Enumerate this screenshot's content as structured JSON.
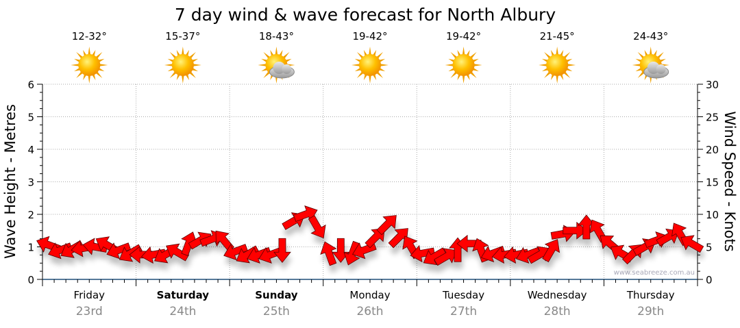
{
  "chart_data": {
    "type": "scatter",
    "title": "7 day wind & wave forecast for North Albury",
    "ylabel": "Wave Height - Metres",
    "y2label": "Wind Speed - Knots",
    "ylim": [
      0,
      6
    ],
    "y2lim": [
      0,
      30
    ],
    "yticks": [
      "0",
      "1",
      "2",
      "3",
      "4",
      "5",
      "6"
    ],
    "y2ticks": [
      "0",
      "5",
      "10",
      "15",
      "20",
      "25",
      "30"
    ],
    "grid": true,
    "watermark": "www.seabreeze.com.au",
    "days": [
      {
        "name": "Friday",
        "date": "23rd",
        "bold": false,
        "temp": "12-32°",
        "icon": "sun"
      },
      {
        "name": "Saturday",
        "date": "24th",
        "bold": true,
        "temp": "15-37°",
        "icon": "sun"
      },
      {
        "name": "Sunday",
        "date": "25th",
        "bold": true,
        "temp": "18-43°",
        "icon": "sun-cloud"
      },
      {
        "name": "Monday",
        "date": "26th",
        "bold": false,
        "temp": "19-42°",
        "icon": "sun"
      },
      {
        "name": "Tuesday",
        "date": "27th",
        "bold": false,
        "temp": "19-42°",
        "icon": "sun"
      },
      {
        "name": "Wednesday",
        "date": "28th",
        "bold": false,
        "temp": "21-45°",
        "icon": "sun"
      },
      {
        "name": "Thursday",
        "date": "29th",
        "bold": false,
        "temp": "24-43°",
        "icon": "sun-cloud"
      }
    ],
    "wind_interval_hours": 3,
    "wind_speed_knots": [
      5.3,
      4.5,
      4.6,
      4.8,
      5.0,
      5.3,
      4.5,
      4.0,
      3.8,
      3.8,
      3.8,
      4.2,
      5.5,
      6.0,
      6.2,
      6.0,
      4.3,
      3.8,
      3.8,
      3.8,
      4.5,
      9.0,
      10.0,
      8.0,
      4.0,
      4.5,
      4.0,
      4.5,
      6.5,
      8.5,
      6.5,
      5.0,
      4.0,
      3.5,
      3.5,
      4.5,
      5.5,
      4.5,
      4.0,
      3.8,
      3.8,
      3.8,
      3.8,
      4.5,
      7.0,
      7.5,
      8.0,
      7.5,
      5.5,
      4.0,
      4.0,
      5.0,
      6.0,
      6.5,
      7.0,
      5.5
    ],
    "wind_direction_toward_deg": [
      290,
      250,
      240,
      260,
      280,
      300,
      250,
      240,
      270,
      260,
      240,
      300,
      20,
      60,
      70,
      320,
      250,
      240,
      250,
      250,
      180,
      60,
      70,
      150,
      340,
      180,
      200,
      250,
      45,
      45,
      45,
      330,
      260,
      240,
      60,
      0,
      270,
      340,
      250,
      260,
      260,
      250,
      60,
      30,
      80,
      90,
      0,
      330,
      310,
      300,
      45,
      60,
      70,
      60,
      330,
      300
    ],
    "colors": {
      "arrow": "#ff0000",
      "arrow_stroke": "#5a0000",
      "axis": "#1f4e79",
      "date": "#888888"
    }
  }
}
